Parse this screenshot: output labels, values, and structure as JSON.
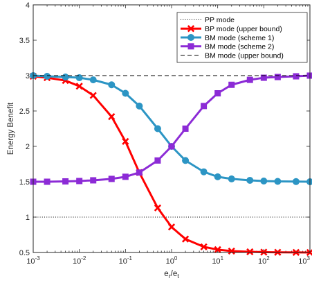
{
  "chart_data": {
    "type": "line",
    "xscale": "log",
    "xlim": [
      0.001,
      1000
    ],
    "ylim": [
      0.5,
      4
    ],
    "xlabel": {
      "base": "e",
      "base_sub": "r",
      "sep": "/",
      "denom": "e",
      "denom_sub": "t"
    },
    "ylabel": "Energy Benefit",
    "xtick_exponents": [
      "-3",
      "-2",
      "-1",
      "0",
      "1",
      "2",
      "3"
    ],
    "xtick_base": "10",
    "yticks": [
      0.5,
      1,
      1.5,
      2,
      2.5,
      3,
      3.5,
      4
    ],
    "ytick_labels": [
      "0.5",
      "1",
      "1.5",
      "2",
      "2.5",
      "3",
      "3.5",
      "4"
    ],
    "legend_position": "top-right",
    "series": [
      {
        "name": "PP mode",
        "style": "dotted",
        "color": "#000000",
        "marker": "none",
        "x": [
          0.001,
          1000
        ],
        "y": [
          1,
          1
        ]
      },
      {
        "name": "BP mode (upper bound)",
        "style": "solid",
        "color": "#ff0000",
        "marker": "x",
        "x": [
          0.001,
          0.002,
          0.005,
          0.01,
          0.02,
          0.05,
          0.1,
          0.2,
          0.5,
          1,
          2,
          5,
          10,
          20,
          50,
          100,
          200,
          500,
          1000
        ],
        "y": [
          2.99,
          2.97,
          2.93,
          2.85,
          2.72,
          2.42,
          2.07,
          1.63,
          1.13,
          0.86,
          0.69,
          0.58,
          0.54,
          0.52,
          0.51,
          0.505,
          0.503,
          0.501,
          0.5
        ]
      },
      {
        "name": "BM mode (scheme 1)",
        "style": "solid",
        "color": "#2c95c4",
        "marker": "circle",
        "x": [
          0.001,
          0.002,
          0.005,
          0.01,
          0.02,
          0.05,
          0.1,
          0.2,
          0.5,
          1,
          2,
          5,
          10,
          20,
          50,
          100,
          200,
          500,
          1000
        ],
        "y": [
          3.0,
          2.99,
          2.98,
          2.97,
          2.94,
          2.87,
          2.75,
          2.57,
          2.25,
          2.0,
          1.8,
          1.64,
          1.57,
          1.54,
          1.52,
          1.51,
          1.505,
          1.502,
          1.5
        ]
      },
      {
        "name": "BM mode (scheme 2)",
        "style": "solid",
        "color": "#8c2bd6",
        "marker": "square",
        "x": [
          0.001,
          0.002,
          0.005,
          0.01,
          0.02,
          0.05,
          0.1,
          0.2,
          0.5,
          1,
          2,
          5,
          10,
          20,
          50,
          100,
          200,
          500,
          1000
        ],
        "y": [
          1.5,
          1.5,
          1.505,
          1.51,
          1.52,
          1.54,
          1.57,
          1.63,
          1.8,
          2.0,
          2.25,
          2.57,
          2.75,
          2.87,
          2.94,
          2.97,
          2.98,
          2.99,
          3.0
        ]
      },
      {
        "name": "BM mode (upper bound)",
        "style": "dashed",
        "color": "#000000",
        "marker": "none",
        "x": [
          0.001,
          1000
        ],
        "y": [
          3,
          3
        ]
      }
    ]
  }
}
